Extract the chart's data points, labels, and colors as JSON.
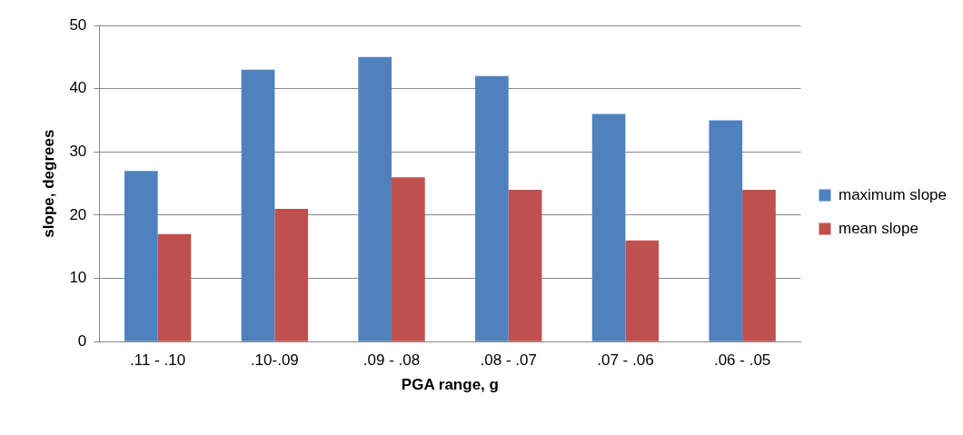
{
  "chart_data": {
    "type": "bar",
    "xlabel": "PGA range, g",
    "ylabel": "slope, degrees",
    "categories": [
      ".11 - .10",
      ".10-.09",
      ".09 - .08",
      ".08 - .07",
      ".07 - .06",
      ".06 - .05"
    ],
    "series": [
      {
        "name": "maximum slope",
        "color": "#4f81bd",
        "values": [
          27,
          43,
          45,
          42,
          36,
          35
        ]
      },
      {
        "name": "mean slope",
        "color": "#c0504d",
        "values": [
          17,
          21,
          26,
          24,
          16,
          24
        ]
      }
    ],
    "ylim": [
      0,
      50
    ],
    "yticks": [
      0,
      10,
      20,
      30,
      40,
      50
    ],
    "grid": "y",
    "legend": "right"
  }
}
